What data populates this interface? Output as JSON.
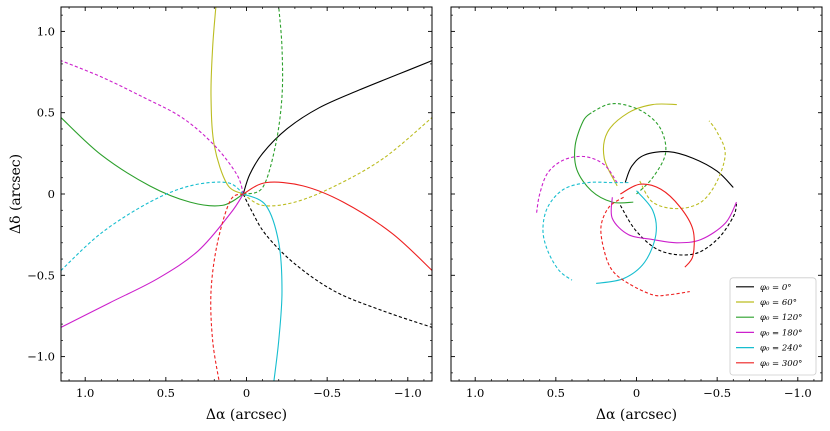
{
  "chart_data": [
    {
      "type": "line",
      "panel": "left",
      "xlabel": "Δα (arcsec)",
      "ylabel": "Δδ (arcsec)",
      "xlim": [
        1.15,
        -1.15
      ],
      "ylim": [
        -1.15,
        1.15
      ],
      "xticks": [
        1.0,
        0.5,
        0,
        -0.5,
        -1.0
      ],
      "xtick_labels": [
        "1.0",
        "0.5",
        "0",
        "−0.5",
        "−1.0"
      ],
      "yticks": [
        1.0,
        0.5,
        0,
        -0.5,
        -1.0
      ],
      "ytick_labels": [
        "1.0",
        "0.5",
        "0",
        "−0.5",
        "−1.0"
      ],
      "grid": false,
      "series": [
        {
          "color": "#000000",
          "curves": [
            {
              "dash": false,
              "points": [
                [
                  0.02,
                  0.0
                ],
                [
                  -0.02,
                  0.12
                ],
                [
                  -0.1,
                  0.25
                ],
                [
                  -0.25,
                  0.4
                ],
                [
                  -0.45,
                  0.53
                ],
                [
                  -0.7,
                  0.64
                ],
                [
                  -0.95,
                  0.74
                ],
                [
                  -1.15,
                  0.82
                ]
              ]
            },
            {
              "dash": true,
              "points": [
                [
                  0.02,
                  0.0
                ],
                [
                  -0.03,
                  -0.1
                ],
                [
                  -0.12,
                  -0.25
                ],
                [
                  -0.3,
                  -0.43
                ],
                [
                  -0.55,
                  -0.6
                ],
                [
                  -0.85,
                  -0.72
                ],
                [
                  -1.15,
                  -0.82
                ]
              ]
            }
          ]
        },
        {
          "color": "#bcbd22",
          "curves": [
            {
              "dash": false,
              "points": [
                [
                  0.02,
                  0.0
                ],
                [
                  0.12,
                  0.06
                ],
                [
                  0.2,
                  0.3
                ],
                [
                  0.22,
                  0.6
                ],
                [
                  0.21,
                  0.9
                ],
                [
                  0.19,
                  1.15
                ]
              ]
            },
            {
              "dash": true,
              "points": [
                [
                  0.02,
                  0.0
                ],
                [
                  -0.1,
                  -0.07
                ],
                [
                  -0.3,
                  -0.05
                ],
                [
                  -0.55,
                  0.05
                ],
                [
                  -0.85,
                  0.22
                ],
                [
                  -1.15,
                  0.47
                ]
              ]
            }
          ]
        },
        {
          "color": "#2ca02c",
          "curves": [
            {
              "dash": false,
              "points": [
                [
                  0.02,
                  0.0
                ],
                [
                  0.15,
                  -0.07
                ],
                [
                  0.35,
                  -0.05
                ],
                [
                  0.6,
                  0.05
                ],
                [
                  0.9,
                  0.24
                ],
                [
                  1.15,
                  0.47
                ]
              ]
            },
            {
              "dash": true,
              "points": [
                [
                  0.02,
                  0.0
                ],
                [
                  -0.1,
                  0.04
                ],
                [
                  -0.18,
                  0.3
                ],
                [
                  -0.22,
                  0.6
                ],
                [
                  -0.22,
                  0.9
                ],
                [
                  -0.2,
                  1.15
                ]
              ]
            }
          ]
        },
        {
          "color": "#cc20cc",
          "curves": [
            {
              "dash": false,
              "points": [
                [
                  0.02,
                  0.0
                ],
                [
                  0.1,
                  -0.12
                ],
                [
                  0.3,
                  -0.35
                ],
                [
                  0.55,
                  -0.52
                ],
                [
                  0.85,
                  -0.67
                ],
                [
                  1.15,
                  -0.82
                ]
              ]
            },
            {
              "dash": true,
              "points": [
                [
                  0.02,
                  0.0
                ],
                [
                  0.06,
                  0.12
                ],
                [
                  0.2,
                  0.3
                ],
                [
                  0.4,
                  0.47
                ],
                [
                  0.65,
                  0.6
                ],
                [
                  0.9,
                  0.72
                ],
                [
                  1.15,
                  0.82
                ]
              ]
            }
          ]
        },
        {
          "color": "#17becf",
          "curves": [
            {
              "dash": false,
              "points": [
                [
                  0.02,
                  0.0
                ],
                [
                  -0.12,
                  -0.07
                ],
                [
                  -0.2,
                  -0.3
                ],
                [
                  -0.22,
                  -0.6
                ],
                [
                  -0.2,
                  -0.9
                ],
                [
                  -0.17,
                  -1.15
                ]
              ]
            },
            {
              "dash": true,
              "points": [
                [
                  0.02,
                  0.0
                ],
                [
                  0.12,
                  0.07
                ],
                [
                  0.35,
                  0.05
                ],
                [
                  0.6,
                  -0.05
                ],
                [
                  0.9,
                  -0.24
                ],
                [
                  1.15,
                  -0.47
                ]
              ]
            }
          ]
        },
        {
          "color": "#ee2020",
          "curves": [
            {
              "dash": false,
              "points": [
                [
                  0.02,
                  0.0
                ],
                [
                  -0.12,
                  0.07
                ],
                [
                  -0.35,
                  0.05
                ],
                [
                  -0.6,
                  -0.05
                ],
                [
                  -0.9,
                  -0.24
                ],
                [
                  -1.15,
                  -0.47
                ]
              ]
            },
            {
              "dash": true,
              "points": [
                [
                  0.02,
                  0.0
                ],
                [
                  0.1,
                  -0.04
                ],
                [
                  0.18,
                  -0.3
                ],
                [
                  0.22,
                  -0.6
                ],
                [
                  0.21,
                  -0.9
                ],
                [
                  0.17,
                  -1.15
                ]
              ]
            }
          ]
        }
      ]
    },
    {
      "type": "line",
      "panel": "right",
      "xlabel": "Δα (arcsec)",
      "ylabel": "",
      "xlim": [
        1.15,
        -1.15
      ],
      "ylim": [
        -1.15,
        1.15
      ],
      "xticks": [
        1.0,
        0.5,
        0,
        -0.5,
        -1.0
      ],
      "xtick_labels": [
        "1.0",
        "0.5",
        "0",
        "−0.5",
        "−1.0"
      ],
      "grid": false,
      "legend_position": "bottom-right",
      "series": [
        {
          "name": "φ₀ = 0°",
          "color": "#000000",
          "curves": [
            {
              "dash": false,
              "points": [
                [
                  0.07,
                  0.07
                ],
                [
                  0.03,
                  0.17
                ],
                [
                  -0.05,
                  0.24
                ],
                [
                  -0.2,
                  0.26
                ],
                [
                  -0.35,
                  0.22
                ],
                [
                  -0.5,
                  0.14
                ],
                [
                  -0.6,
                  0.04
                ]
              ]
            },
            {
              "dash": true,
              "points": [
                [
                  0.1,
                  -0.07
                ],
                [
                  0.0,
                  -0.23
                ],
                [
                  -0.15,
                  -0.35
                ],
                [
                  -0.35,
                  -0.37
                ],
                [
                  -0.5,
                  -0.28
                ],
                [
                  -0.6,
                  -0.14
                ],
                [
                  -0.62,
                  -0.06
                ]
              ]
            }
          ]
        },
        {
          "name": "φ₀ = 60°",
          "color": "#bcbd22",
          "curves": [
            {
              "dash": false,
              "points": [
                [
                  0.12,
                  0.05
                ],
                [
                  0.2,
                  0.22
                ],
                [
                  0.18,
                  0.38
                ],
                [
                  0.05,
                  0.5
                ],
                [
                  -0.1,
                  0.55
                ],
                [
                  -0.25,
                  0.55
                ]
              ]
            },
            {
              "dash": true,
              "points": [
                [
                  -0.02,
                  0.08
                ],
                [
                  -0.1,
                  -0.05
                ],
                [
                  -0.25,
                  -0.09
                ],
                [
                  -0.4,
                  -0.05
                ],
                [
                  -0.5,
                  0.08
                ],
                [
                  -0.55,
                  0.25
                ],
                [
                  -0.5,
                  0.38
                ],
                [
                  -0.45,
                  0.45
                ]
              ]
            }
          ]
        },
        {
          "name": "φ₀ = 120°",
          "color": "#2ca02c",
          "curves": [
            {
              "dash": false,
              "points": [
                [
                  0.02,
                  -0.05
                ],
                [
                  0.15,
                  -0.05
                ],
                [
                  0.28,
                  0.02
                ],
                [
                  0.37,
                  0.15
                ],
                [
                  0.38,
                  0.3
                ],
                [
                  0.33,
                  0.45
                ],
                [
                  0.28,
                  0.5
                ]
              ]
            },
            {
              "dash": true,
              "points": [
                [
                  0.0,
                  0.0
                ],
                [
                  -0.1,
                  0.1
                ],
                [
                  -0.18,
                  0.25
                ],
                [
                  -0.15,
                  0.4
                ],
                [
                  -0.05,
                  0.5
                ],
                [
                  0.08,
                  0.55
                ],
                [
                  0.18,
                  0.55
                ],
                [
                  0.28,
                  0.5
                ]
              ]
            }
          ]
        },
        {
          "name": "φ₀ = 180°",
          "color": "#cc20cc",
          "curves": [
            {
              "dash": false,
              "points": [
                [
                  0.15,
                  -0.02
                ],
                [
                  0.15,
                  -0.15
                ],
                [
                  0.05,
                  -0.25
                ],
                [
                  -0.1,
                  -0.28
                ],
                [
                  -0.25,
                  -0.3
                ],
                [
                  -0.4,
                  -0.28
                ],
                [
                  -0.55,
                  -0.18
                ],
                [
                  -0.62,
                  -0.05
                ]
              ]
            },
            {
              "dash": true,
              "points": [
                [
                  0.12,
                  0.07
                ],
                [
                  0.2,
                  0.18
                ],
                [
                  0.32,
                  0.23
                ],
                [
                  0.45,
                  0.21
                ],
                [
                  0.55,
                  0.13
                ],
                [
                  0.6,
                  0.0
                ],
                [
                  0.62,
                  -0.12
                ]
              ]
            }
          ]
        },
        {
          "name": "φ₀ = 240°",
          "color": "#17becf",
          "curves": [
            {
              "dash": false,
              "points": [
                [
                  0.0,
                  0.02
                ],
                [
                  -0.1,
                  -0.1
                ],
                [
                  -0.12,
                  -0.25
                ],
                [
                  -0.05,
                  -0.42
                ],
                [
                  0.08,
                  -0.52
                ],
                [
                  0.25,
                  -0.55
                ]
              ]
            },
            {
              "dash": true,
              "points": [
                [
                  0.05,
                  0.07
                ],
                [
                  0.15,
                  0.07
                ],
                [
                  0.3,
                  0.07
                ],
                [
                  0.45,
                  0.03
                ],
                [
                  0.55,
                  -0.08
                ],
                [
                  0.58,
                  -0.22
                ],
                [
                  0.55,
                  -0.35
                ],
                [
                  0.48,
                  -0.47
                ],
                [
                  0.4,
                  -0.53
                ]
              ]
            }
          ]
        },
        {
          "name": "φ₀ = 300°",
          "color": "#ee2020",
          "curves": [
            {
              "dash": false,
              "points": [
                [
                  0.1,
                  0.0
                ],
                [
                  -0.02,
                  0.06
                ],
                [
                  -0.15,
                  0.03
                ],
                [
                  -0.27,
                  -0.08
                ],
                [
                  -0.35,
                  -0.22
                ],
                [
                  -0.35,
                  -0.38
                ],
                [
                  -0.3,
                  -0.45
                ]
              ]
            },
            {
              "dash": true,
              "points": [
                [
                  0.08,
                  -0.02
                ],
                [
                  0.17,
                  -0.08
                ],
                [
                  0.22,
                  -0.2
                ],
                [
                  0.2,
                  -0.35
                ],
                [
                  0.15,
                  -0.47
                ],
                [
                  0.05,
                  -0.55
                ],
                [
                  -0.1,
                  -0.62
                ],
                [
                  -0.2,
                  -0.62
                ],
                [
                  -0.33,
                  -0.6
                ]
              ]
            }
          ]
        }
      ]
    }
  ]
}
